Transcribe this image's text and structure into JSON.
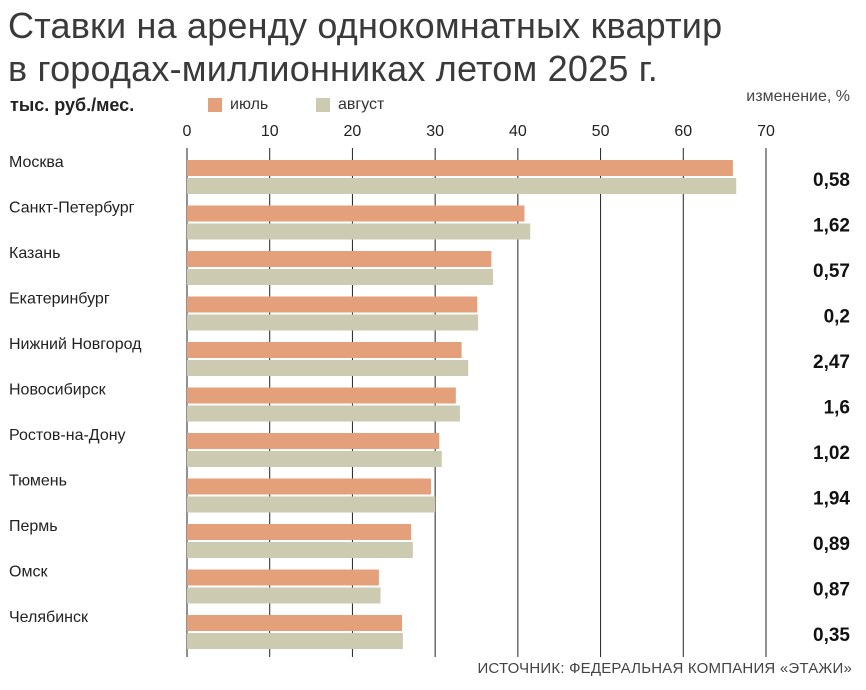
{
  "title_lines": [
    "Ставки на аренду однокомнатных квартир",
    "в городах-миллионниках летом 2025 г."
  ],
  "units": "тыс. руб./мес.",
  "change_header": "изменение, %",
  "source": "ИСТОЧНИК: ФЕДЕРАЛЬНАЯ КОМПАНИЯ «ЭТАЖИ»",
  "colors": {
    "july": "#E4A07A",
    "august": "#CCCAB1",
    "gridline": "#222222"
  },
  "chart_data": {
    "type": "bar",
    "orientation": "horizontal",
    "categories": [
      "Москва",
      "Санкт-Петербург",
      "Казань",
      "Екатеринбург",
      "Нижний Новгород",
      "Новосибирск",
      "Ростов-на-Дону",
      "Тюмень",
      "Пермь",
      "Омск",
      "Челябинск"
    ],
    "series": [
      {
        "name": "июль",
        "values": [
          66.0,
          40.8,
          36.8,
          35.1,
          33.2,
          32.5,
          30.5,
          29.5,
          27.1,
          23.2,
          26.0
        ]
      },
      {
        "name": "август",
        "values": [
          66.4,
          41.5,
          37.0,
          35.2,
          34.0,
          33.0,
          30.8,
          30.0,
          27.3,
          23.4,
          26.1
        ]
      }
    ],
    "changes": [
      "0,58",
      "1,62",
      "0,57",
      "0,2",
      "2,47",
      "1,6",
      "1,02",
      "1,94",
      "0,89",
      "0,87",
      "0,35"
    ],
    "xlim": [
      0,
      70
    ],
    "xticks": [
      0,
      10,
      20,
      30,
      40,
      50,
      60,
      70
    ],
    "grid": true,
    "legend_position": "top"
  }
}
